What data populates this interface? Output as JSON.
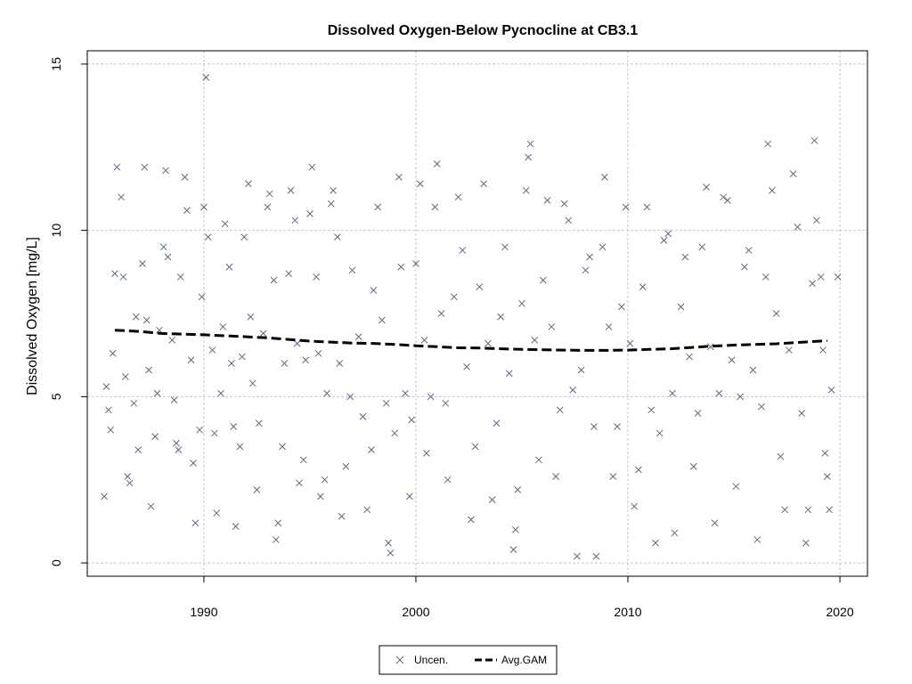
{
  "chart_data": {
    "type": "scatter",
    "title": "Dissolved Oxygen-Below Pycnocline at CB3.1",
    "xlabel": "",
    "ylabel": "Dissolved Oxygen [mg/L]",
    "xlim": [
      1984.5,
      2021.3
    ],
    "ylim": [
      -0.4,
      15.4
    ],
    "x_ticks": [
      1990,
      2000,
      2010,
      2020
    ],
    "y_ticks": [
      0,
      5,
      10,
      15
    ],
    "grid": true,
    "legend_placement": "bottom-center",
    "series": [
      {
        "name": "Uncen.",
        "marker": "x",
        "color": "#5b6a82",
        "points": [
          [
            1985.3,
            2.0
          ],
          [
            1985.4,
            5.3
          ],
          [
            1985.5,
            4.6
          ],
          [
            1985.6,
            4.0
          ],
          [
            1985.7,
            6.3
          ],
          [
            1985.8,
            8.7
          ],
          [
            1985.9,
            11.9
          ],
          [
            1986.1,
            11.0
          ],
          [
            1986.2,
            8.6
          ],
          [
            1986.3,
            5.6
          ],
          [
            1986.4,
            2.6
          ],
          [
            1986.5,
            2.4
          ],
          [
            1986.7,
            4.8
          ],
          [
            1986.8,
            7.4
          ],
          [
            1986.9,
            3.4
          ],
          [
            1987.1,
            9.0
          ],
          [
            1987.2,
            11.9
          ],
          [
            1987.3,
            7.3
          ],
          [
            1987.4,
            5.8
          ],
          [
            1987.5,
            1.7
          ],
          [
            1987.7,
            3.8
          ],
          [
            1987.8,
            5.1
          ],
          [
            1987.9,
            7.0
          ],
          [
            1988.1,
            9.5
          ],
          [
            1988.2,
            11.8
          ],
          [
            1988.3,
            9.2
          ],
          [
            1988.5,
            6.7
          ],
          [
            1988.6,
            4.9
          ],
          [
            1988.7,
            3.6
          ],
          [
            1988.8,
            3.4
          ],
          [
            1988.9,
            8.6
          ],
          [
            1989.1,
            11.6
          ],
          [
            1989.2,
            10.6
          ],
          [
            1989.4,
            6.1
          ],
          [
            1989.5,
            3.0
          ],
          [
            1989.6,
            1.2
          ],
          [
            1989.8,
            4.0
          ],
          [
            1989.9,
            8.0
          ],
          [
            1990.0,
            10.7
          ],
          [
            1990.1,
            14.6
          ],
          [
            1990.2,
            9.8
          ],
          [
            1990.4,
            6.4
          ],
          [
            1990.5,
            3.9
          ],
          [
            1990.6,
            1.5
          ],
          [
            1990.8,
            5.1
          ],
          [
            1990.9,
            7.1
          ],
          [
            1991.0,
            10.2
          ],
          [
            1991.2,
            8.9
          ],
          [
            1991.3,
            6.0
          ],
          [
            1991.4,
            4.1
          ],
          [
            1991.5,
            1.1
          ],
          [
            1991.7,
            3.5
          ],
          [
            1991.8,
            6.2
          ],
          [
            1991.9,
            9.8
          ],
          [
            1992.1,
            11.4
          ],
          [
            1992.2,
            7.4
          ],
          [
            1992.3,
            5.4
          ],
          [
            1992.5,
            2.2
          ],
          [
            1992.6,
            4.2
          ],
          [
            1992.8,
            6.9
          ],
          [
            1993.0,
            10.7
          ],
          [
            1993.1,
            11.1
          ],
          [
            1993.3,
            8.5
          ],
          [
            1993.4,
            0.7
          ],
          [
            1993.5,
            1.2
          ],
          [
            1993.7,
            3.5
          ],
          [
            1993.8,
            6.0
          ],
          [
            1994.0,
            8.7
          ],
          [
            1994.1,
            11.2
          ],
          [
            1994.3,
            10.3
          ],
          [
            1994.4,
            6.6
          ],
          [
            1994.5,
            2.4
          ],
          [
            1994.7,
            3.1
          ],
          [
            1994.8,
            6.1
          ],
          [
            1995.0,
            10.5
          ],
          [
            1995.1,
            11.9
          ],
          [
            1995.3,
            8.6
          ],
          [
            1995.4,
            6.3
          ],
          [
            1995.5,
            2.0
          ],
          [
            1995.7,
            2.5
          ],
          [
            1995.8,
            5.1
          ],
          [
            1996.0,
            10.8
          ],
          [
            1996.1,
            11.2
          ],
          [
            1996.3,
            9.8
          ],
          [
            1996.4,
            6.0
          ],
          [
            1996.5,
            1.4
          ],
          [
            1996.7,
            2.9
          ],
          [
            1996.9,
            5.0
          ],
          [
            1997.0,
            8.8
          ],
          [
            1997.3,
            6.8
          ],
          [
            1997.5,
            4.4
          ],
          [
            1997.7,
            1.6
          ],
          [
            1997.9,
            3.4
          ],
          [
            1998.0,
            8.2
          ],
          [
            1998.2,
            10.7
          ],
          [
            1998.4,
            7.3
          ],
          [
            1998.6,
            4.8
          ],
          [
            1998.7,
            0.6
          ],
          [
            1998.8,
            0.3
          ],
          [
            1999.0,
            3.9
          ],
          [
            1999.2,
            11.6
          ],
          [
            1999.3,
            8.9
          ],
          [
            1999.5,
            5.1
          ],
          [
            1999.7,
            2.0
          ],
          [
            1999.8,
            4.3
          ],
          [
            2000.0,
            9.0
          ],
          [
            2000.2,
            11.4
          ],
          [
            2000.4,
            6.7
          ],
          [
            2000.5,
            3.3
          ],
          [
            2000.7,
            5.0
          ],
          [
            2000.9,
            10.7
          ],
          [
            2001.0,
            12.0
          ],
          [
            2001.2,
            7.5
          ],
          [
            2001.4,
            4.8
          ],
          [
            2001.5,
            2.5
          ],
          [
            2001.8,
            8.0
          ],
          [
            2002.0,
            11.0
          ],
          [
            2002.2,
            9.4
          ],
          [
            2002.4,
            5.9
          ],
          [
            2002.6,
            1.3
          ],
          [
            2002.8,
            3.5
          ],
          [
            2003.0,
            8.3
          ],
          [
            2003.2,
            11.4
          ],
          [
            2003.4,
            6.6
          ],
          [
            2003.6,
            1.9
          ],
          [
            2003.8,
            4.2
          ],
          [
            2004.0,
            7.4
          ],
          [
            2004.2,
            9.5
          ],
          [
            2004.4,
            5.7
          ],
          [
            2004.6,
            0.4
          ],
          [
            2004.7,
            1.0
          ],
          [
            2004.8,
            2.2
          ],
          [
            2005.0,
            7.8
          ],
          [
            2005.2,
            11.2
          ],
          [
            2005.3,
            12.2
          ],
          [
            2005.4,
            12.6
          ],
          [
            2005.6,
            6.7
          ],
          [
            2005.8,
            3.1
          ],
          [
            2006.0,
            8.5
          ],
          [
            2006.2,
            10.9
          ],
          [
            2006.4,
            7.1
          ],
          [
            2006.6,
            2.6
          ],
          [
            2006.8,
            4.6
          ],
          [
            2007.0,
            10.8
          ],
          [
            2007.2,
            10.3
          ],
          [
            2007.4,
            5.2
          ],
          [
            2007.6,
            0.2
          ],
          [
            2007.8,
            5.8
          ],
          [
            2008.0,
            8.8
          ],
          [
            2008.2,
            9.2
          ],
          [
            2008.4,
            4.1
          ],
          [
            2008.5,
            0.2
          ],
          [
            2008.8,
            9.5
          ],
          [
            2008.9,
            11.6
          ],
          [
            2009.1,
            7.1
          ],
          [
            2009.3,
            2.6
          ],
          [
            2009.5,
            4.1
          ],
          [
            2009.7,
            7.7
          ],
          [
            2009.9,
            10.7
          ],
          [
            2010.1,
            6.6
          ],
          [
            2010.3,
            1.7
          ],
          [
            2010.5,
            2.8
          ],
          [
            2010.7,
            8.3
          ],
          [
            2010.9,
            10.7
          ],
          [
            2011.1,
            4.6
          ],
          [
            2011.3,
            0.6
          ],
          [
            2011.5,
            3.9
          ],
          [
            2011.7,
            9.7
          ],
          [
            2011.9,
            9.9
          ],
          [
            2012.1,
            5.1
          ],
          [
            2012.2,
            0.9
          ],
          [
            2012.5,
            7.7
          ],
          [
            2012.7,
            9.2
          ],
          [
            2012.9,
            6.2
          ],
          [
            2013.1,
            2.9
          ],
          [
            2013.3,
            4.5
          ],
          [
            2013.5,
            9.5
          ],
          [
            2013.7,
            11.3
          ],
          [
            2013.9,
            6.5
          ],
          [
            2014.1,
            1.2
          ],
          [
            2014.3,
            5.1
          ],
          [
            2014.5,
            11.0
          ],
          [
            2014.7,
            10.9
          ],
          [
            2014.9,
            6.1
          ],
          [
            2015.1,
            2.3
          ],
          [
            2015.3,
            5.0
          ],
          [
            2015.5,
            8.9
          ],
          [
            2015.7,
            9.4
          ],
          [
            2015.9,
            5.8
          ],
          [
            2016.1,
            0.7
          ],
          [
            2016.3,
            4.7
          ],
          [
            2016.5,
            8.6
          ],
          [
            2016.6,
            12.6
          ],
          [
            2016.8,
            11.2
          ],
          [
            2017.0,
            7.5
          ],
          [
            2017.2,
            3.2
          ],
          [
            2017.4,
            1.6
          ],
          [
            2017.6,
            6.4
          ],
          [
            2017.8,
            11.7
          ],
          [
            2018.0,
            10.1
          ],
          [
            2018.2,
            4.5
          ],
          [
            2018.4,
            0.6
          ],
          [
            2018.5,
            1.6
          ],
          [
            2018.7,
            8.4
          ],
          [
            2018.8,
            12.7
          ],
          [
            2018.9,
            10.3
          ],
          [
            2019.1,
            8.6
          ],
          [
            2019.2,
            6.4
          ],
          [
            2019.3,
            3.3
          ],
          [
            2019.4,
            2.6
          ],
          [
            2019.5,
            1.6
          ],
          [
            2019.6,
            5.2
          ],
          [
            2019.9,
            8.6
          ]
        ]
      },
      {
        "name": "Avg.GAM",
        "line_style": "dashed",
        "color": "#000000",
        "points": [
          [
            1985.8,
            7.0
          ],
          [
            1987.0,
            6.96
          ],
          [
            1988.0,
            6.9
          ],
          [
            1989.0,
            6.88
          ],
          [
            1990.0,
            6.86
          ],
          [
            1991.0,
            6.83
          ],
          [
            1992.0,
            6.8
          ],
          [
            1993.0,
            6.77
          ],
          [
            1994.0,
            6.72
          ],
          [
            1995.0,
            6.67
          ],
          [
            1996.0,
            6.64
          ],
          [
            1997.0,
            6.61
          ],
          [
            1998.0,
            6.6
          ],
          [
            1999.0,
            6.57
          ],
          [
            2000.0,
            6.53
          ],
          [
            2001.0,
            6.5
          ],
          [
            2002.0,
            6.47
          ],
          [
            2003.0,
            6.46
          ],
          [
            2004.0,
            6.44
          ],
          [
            2005.0,
            6.42
          ],
          [
            2006.0,
            6.41
          ],
          [
            2007.0,
            6.4
          ],
          [
            2008.0,
            6.39
          ],
          [
            2009.0,
            6.39
          ],
          [
            2010.0,
            6.4
          ],
          [
            2011.0,
            6.42
          ],
          [
            2012.0,
            6.44
          ],
          [
            2013.0,
            6.48
          ],
          [
            2014.0,
            6.52
          ],
          [
            2015.0,
            6.55
          ],
          [
            2016.0,
            6.57
          ],
          [
            2017.0,
            6.59
          ],
          [
            2018.0,
            6.63
          ],
          [
            2019.4,
            6.68
          ]
        ]
      }
    ]
  },
  "legend": {
    "items": [
      {
        "label": "Uncen.",
        "icon": "x-marker-icon"
      },
      {
        "label": "Avg.GAM",
        "icon": "dashed-line-icon"
      }
    ]
  }
}
